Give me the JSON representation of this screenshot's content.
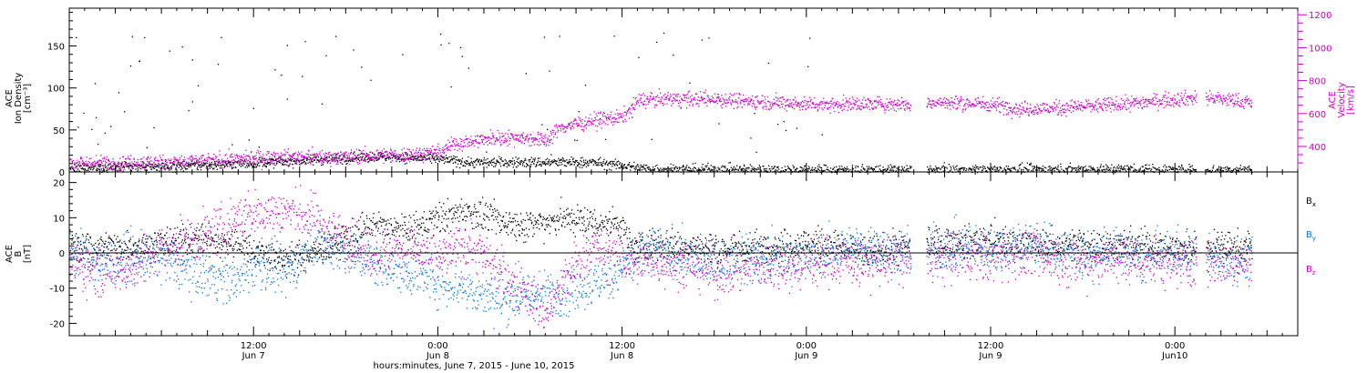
{
  "chart_data": [
    {
      "type": "scatter",
      "panel": "top",
      "ylabel_lines": [
        "ACE",
        "Ion Density",
        "[cm⁻³]"
      ],
      "ylim": [
        0,
        195
      ],
      "yticks": [
        "0",
        "50",
        "100",
        "150"
      ],
      "y2label_lines": [
        "ACE",
        "Velocity",
        "[km/s]"
      ],
      "y2lim": [
        245,
        1240
      ],
      "y2ticks": [
        "400",
        "600",
        "800",
        "1000",
        "1200"
      ],
      "x_hours_range": [
        0,
        80
      ],
      "gaps": [
        [
          54.8,
          55.8
        ],
        [
          73.4,
          74.0
        ]
      ],
      "series": [
        {
          "name": "",
          "color": "#000000",
          "anchors": [
            [
              0,
              5
            ],
            [
              8,
              8
            ],
            [
              14,
              13
            ],
            [
              20,
              19
            ],
            [
              24,
              16
            ],
            [
              26,
              12
            ],
            [
              30,
              12
            ],
            [
              34,
              12
            ],
            [
              36,
              8
            ],
            [
              38,
              4
            ],
            [
              48,
              3
            ],
            [
              60,
              3
            ],
            [
              68,
              4
            ],
            [
              72,
              3
            ],
            [
              77,
              3
            ]
          ],
          "noise": 3
        },
        {
          "name": "",
          "color": "#cc00cc",
          "anchors": [
            [
              0,
              300
            ],
            [
              8,
              310
            ],
            [
              10,
              320
            ],
            [
              13,
              335
            ],
            [
              18,
              340
            ],
            [
              21,
              350
            ],
            [
              24,
              365
            ],
            [
              25,
              420
            ],
            [
              28,
              455
            ],
            [
              29,
              460
            ],
            [
              31,
              440
            ],
            [
              32,
              520
            ],
            [
              34,
              560
            ],
            [
              36,
              580
            ],
            [
              37,
              680
            ],
            [
              38,
              690
            ],
            [
              42,
              690
            ],
            [
              46,
              670
            ],
            [
              48,
              660
            ],
            [
              54.8,
              660
            ],
            [
              56,
              670
            ],
            [
              60,
              660
            ],
            [
              62,
              630
            ],
            [
              64,
              635
            ],
            [
              68,
              655
            ],
            [
              72,
              690
            ],
            [
              73.4,
              700
            ],
            [
              74,
              700
            ],
            [
              77,
              670
            ]
          ],
          "noise": 22
        }
      ]
    },
    {
      "type": "scatter",
      "panel": "bottom",
      "ylabel_lines": [
        "ACE",
        "B",
        "[nT]"
      ],
      "ylim": [
        -23.5,
        23
      ],
      "yticks": [
        "-20",
        "-10",
        "0",
        "10",
        "20"
      ],
      "x_hours_range": [
        0,
        80
      ],
      "xticks": [
        {
          "hours": 12,
          "time": "12:00",
          "day": "Jun 7"
        },
        {
          "hours": 24,
          "time": "0:00",
          "day": "Jun 8"
        },
        {
          "hours": 36,
          "time": "12:00",
          "day": "Jun 8"
        },
        {
          "hours": 48,
          "time": "0:00",
          "day": "Jun 9"
        },
        {
          "hours": 60,
          "time": "12:00",
          "day": "Jun 9"
        },
        {
          "hours": 72,
          "time": "0:00",
          "day": "Jun10"
        }
      ],
      "xlabel": "hours:minutes, June  7, 2015 - June 10, 2015",
      "gaps": [
        [
          54.8,
          55.8
        ],
        [
          73.4,
          74.0
        ]
      ],
      "series": [
        {
          "name": "Bx",
          "legend_main": "B",
          "legend_sub": "x",
          "color": "#000000",
          "anchors": [
            [
              0,
              2
            ],
            [
              4,
              2
            ],
            [
              6,
              3
            ],
            [
              8,
              4
            ],
            [
              10,
              3
            ],
            [
              11,
              3
            ],
            [
              12,
              1
            ],
            [
              14,
              -2
            ],
            [
              16,
              0
            ],
            [
              18,
              5
            ],
            [
              20,
              8
            ],
            [
              22,
              6
            ],
            [
              24,
              10
            ],
            [
              26,
              12
            ],
            [
              28,
              9
            ],
            [
              30,
              8
            ],
            [
              32,
              10
            ],
            [
              34,
              9
            ],
            [
              36,
              8
            ],
            [
              36.5,
              2
            ],
            [
              38,
              3
            ],
            [
              40,
              2
            ],
            [
              42,
              1
            ],
            [
              44,
              2
            ],
            [
              46,
              2
            ],
            [
              48,
              3
            ],
            [
              50,
              2
            ],
            [
              52,
              0
            ],
            [
              54,
              2
            ],
            [
              56,
              3
            ],
            [
              58,
              3
            ],
            [
              60,
              4
            ],
            [
              62,
              3
            ],
            [
              64,
              2
            ],
            [
              66,
              3
            ],
            [
              68,
              2
            ],
            [
              70,
              3
            ],
            [
              72,
              1
            ],
            [
              74,
              2
            ],
            [
              77,
              2
            ]
          ],
          "noise": 2.2
        },
        {
          "name": "By",
          "legend_main": "B",
          "legend_sub": "y",
          "color": "#0077dd",
          "anchors": [
            [
              0,
              1
            ],
            [
              2,
              -3
            ],
            [
              4,
              -1
            ],
            [
              6,
              -2
            ],
            [
              8,
              -5
            ],
            [
              10,
              -7
            ],
            [
              11,
              -8
            ],
            [
              12,
              -3
            ],
            [
              14,
              -6
            ],
            [
              16,
              3
            ],
            [
              18,
              1
            ],
            [
              20,
              -3
            ],
            [
              22,
              -5
            ],
            [
              24,
              -8
            ],
            [
              26,
              -10
            ],
            [
              28,
              -13
            ],
            [
              30,
              -12
            ],
            [
              32,
              -11
            ],
            [
              34,
              -9
            ],
            [
              35,
              -7
            ],
            [
              36.5,
              -2
            ],
            [
              38,
              1
            ],
            [
              40,
              -1
            ],
            [
              42,
              -3
            ],
            [
              44,
              -2
            ],
            [
              46,
              -1
            ],
            [
              48,
              -1
            ],
            [
              50,
              1
            ],
            [
              52,
              2
            ],
            [
              54,
              0
            ],
            [
              56,
              1
            ],
            [
              58,
              2
            ],
            [
              60,
              1
            ],
            [
              62,
              3
            ],
            [
              64,
              2
            ],
            [
              66,
              -1
            ],
            [
              68,
              1
            ],
            [
              70,
              -2
            ],
            [
              72,
              1
            ],
            [
              74,
              -1
            ],
            [
              77,
              -2
            ]
          ],
          "noise": 3.2
        },
        {
          "name": "Bz",
          "legend_main": "B",
          "legend_sub": "z",
          "color": "#cc00cc",
          "anchors": [
            [
              0,
              -3
            ],
            [
              2,
              -5
            ],
            [
              4,
              -4
            ],
            [
              6,
              1
            ],
            [
              8,
              4
            ],
            [
              10,
              7
            ],
            [
              11,
              11
            ],
            [
              12,
              11
            ],
            [
              14,
              12
            ],
            [
              16,
              10
            ],
            [
              18,
              3
            ],
            [
              20,
              0
            ],
            [
              22,
              2
            ],
            [
              24,
              -2
            ],
            [
              26,
              3
            ],
            [
              28,
              -5
            ],
            [
              30,
              -12
            ],
            [
              31,
              -17
            ],
            [
              32,
              -10
            ],
            [
              33,
              -3
            ],
            [
              34,
              2
            ],
            [
              35,
              0
            ],
            [
              36.5,
              -3
            ],
            [
              38,
              -2
            ],
            [
              40,
              -3
            ],
            [
              42,
              -5
            ],
            [
              44,
              -4
            ],
            [
              46,
              -3
            ],
            [
              48,
              -3
            ],
            [
              50,
              -2
            ],
            [
              52,
              -3
            ],
            [
              54,
              -2
            ],
            [
              56,
              -2
            ],
            [
              58,
              -1
            ],
            [
              60,
              -1
            ],
            [
              62,
              0
            ],
            [
              64,
              -1
            ],
            [
              66,
              -3
            ],
            [
              68,
              -1
            ],
            [
              70,
              -2
            ],
            [
              72,
              -3
            ],
            [
              74,
              -2
            ],
            [
              77,
              -3
            ]
          ],
          "noise": 3.4
        }
      ]
    }
  ]
}
